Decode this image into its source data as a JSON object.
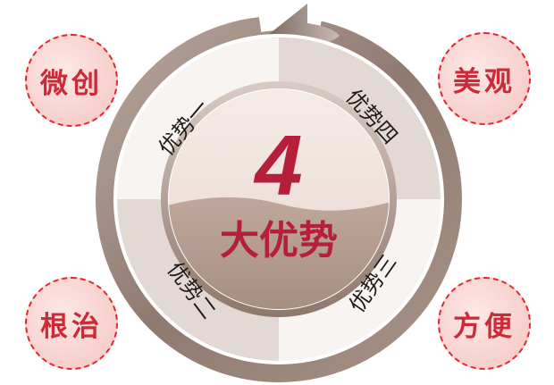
{
  "center": {
    "number": "4",
    "label": "大优势"
  },
  "segments": [
    "优势一",
    "优势二",
    "优势三",
    "优势四"
  ],
  "bubbles": {
    "top_left": "微创",
    "top_right": "美观",
    "bottom_left": "根治",
    "bottom_right": "方便"
  },
  "colors": {
    "accent_red": "#b51f3a",
    "bubble_text": "#cc2a36",
    "bubble_border": "#e5252f",
    "ring": "#9e8a80"
  }
}
